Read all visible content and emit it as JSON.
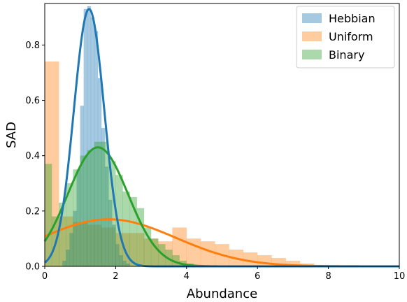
{
  "chart_data": {
    "type": "bar",
    "xlabel": "Abundance",
    "ylabel": "SAD",
    "xlim": [
      0,
      10
    ],
    "ylim": [
      0,
      0.95
    ],
    "xticks": [
      "0",
      "2",
      "4",
      "6",
      "8",
      "10"
    ],
    "yticks": [
      "0.0",
      "0.2",
      "0.4",
      "0.6",
      "0.8"
    ],
    "grid": false,
    "legend_position": "top-right",
    "series": [
      {
        "name": "Hebbian",
        "color": "#1f77b4",
        "bin_width": 0.1,
        "bins": [
          [
            0.5,
            0.02
          ],
          [
            0.6,
            0.06
          ],
          [
            0.7,
            0.12
          ],
          [
            0.8,
            0.2
          ],
          [
            0.9,
            0.35
          ],
          [
            1.0,
            0.58
          ],
          [
            1.1,
            0.93
          ],
          [
            1.2,
            0.94
          ],
          [
            1.3,
            0.9
          ],
          [
            1.4,
            0.85
          ],
          [
            1.5,
            0.68
          ],
          [
            1.6,
            0.5
          ],
          [
            1.7,
            0.36
          ],
          [
            1.8,
            0.24
          ],
          [
            1.9,
            0.15
          ],
          [
            2.0,
            0.08
          ],
          [
            2.1,
            0.04
          ],
          [
            2.2,
            0.02
          ],
          [
            2.3,
            0.01
          ]
        ],
        "fit": {
          "kind": "gaussian",
          "amplitude": 0.93,
          "mean": 1.25,
          "sd": 0.43
        }
      },
      {
        "name": "Uniform",
        "color": "#ff7f0e",
        "bin_width": 0.4,
        "bins": [
          [
            0.0,
            0.74
          ],
          [
            0.4,
            0.18
          ],
          [
            0.8,
            0.16
          ],
          [
            1.2,
            0.15
          ],
          [
            1.6,
            0.14
          ],
          [
            2.0,
            0.12
          ],
          [
            2.4,
            0.12
          ],
          [
            2.8,
            0.1
          ],
          [
            3.2,
            0.09
          ],
          [
            3.6,
            0.14
          ],
          [
            4.0,
            0.1
          ],
          [
            4.4,
            0.09
          ],
          [
            4.8,
            0.08
          ],
          [
            5.2,
            0.06
          ],
          [
            5.6,
            0.05
          ],
          [
            6.0,
            0.04
          ],
          [
            6.4,
            0.03
          ],
          [
            6.8,
            0.02
          ],
          [
            7.2,
            0.01
          ],
          [
            7.6,
            0.005
          ],
          [
            8.0,
            0.003
          ],
          [
            8.4,
            0.002
          ],
          [
            8.8,
            0.001
          ],
          [
            9.2,
            0.001
          ]
        ],
        "fit": {
          "kind": "gaussian",
          "amplitude": 0.17,
          "mean": 1.8,
          "sd": 1.9
        }
      },
      {
        "name": "Binary",
        "color": "#2ca02c",
        "bin_width": 0.2,
        "bins": [
          [
            0.0,
            0.37
          ],
          [
            0.2,
            0.18
          ],
          [
            0.4,
            0.23
          ],
          [
            0.6,
            0.3
          ],
          [
            0.8,
            0.35
          ],
          [
            1.0,
            0.4
          ],
          [
            1.2,
            0.42
          ],
          [
            1.4,
            0.45
          ],
          [
            1.6,
            0.45
          ],
          [
            1.8,
            0.38
          ],
          [
            2.0,
            0.33
          ],
          [
            2.2,
            0.27
          ],
          [
            2.4,
            0.25
          ],
          [
            2.6,
            0.21
          ],
          [
            2.8,
            0.14
          ],
          [
            3.0,
            0.1
          ],
          [
            3.2,
            0.08
          ],
          [
            3.4,
            0.06
          ],
          [
            3.6,
            0.04
          ],
          [
            3.8,
            0.02
          ],
          [
            4.0,
            0.01
          ]
        ],
        "fit": {
          "kind": "gaussian",
          "amplitude": 0.43,
          "mean": 1.5,
          "sd": 0.85
        }
      }
    ]
  }
}
